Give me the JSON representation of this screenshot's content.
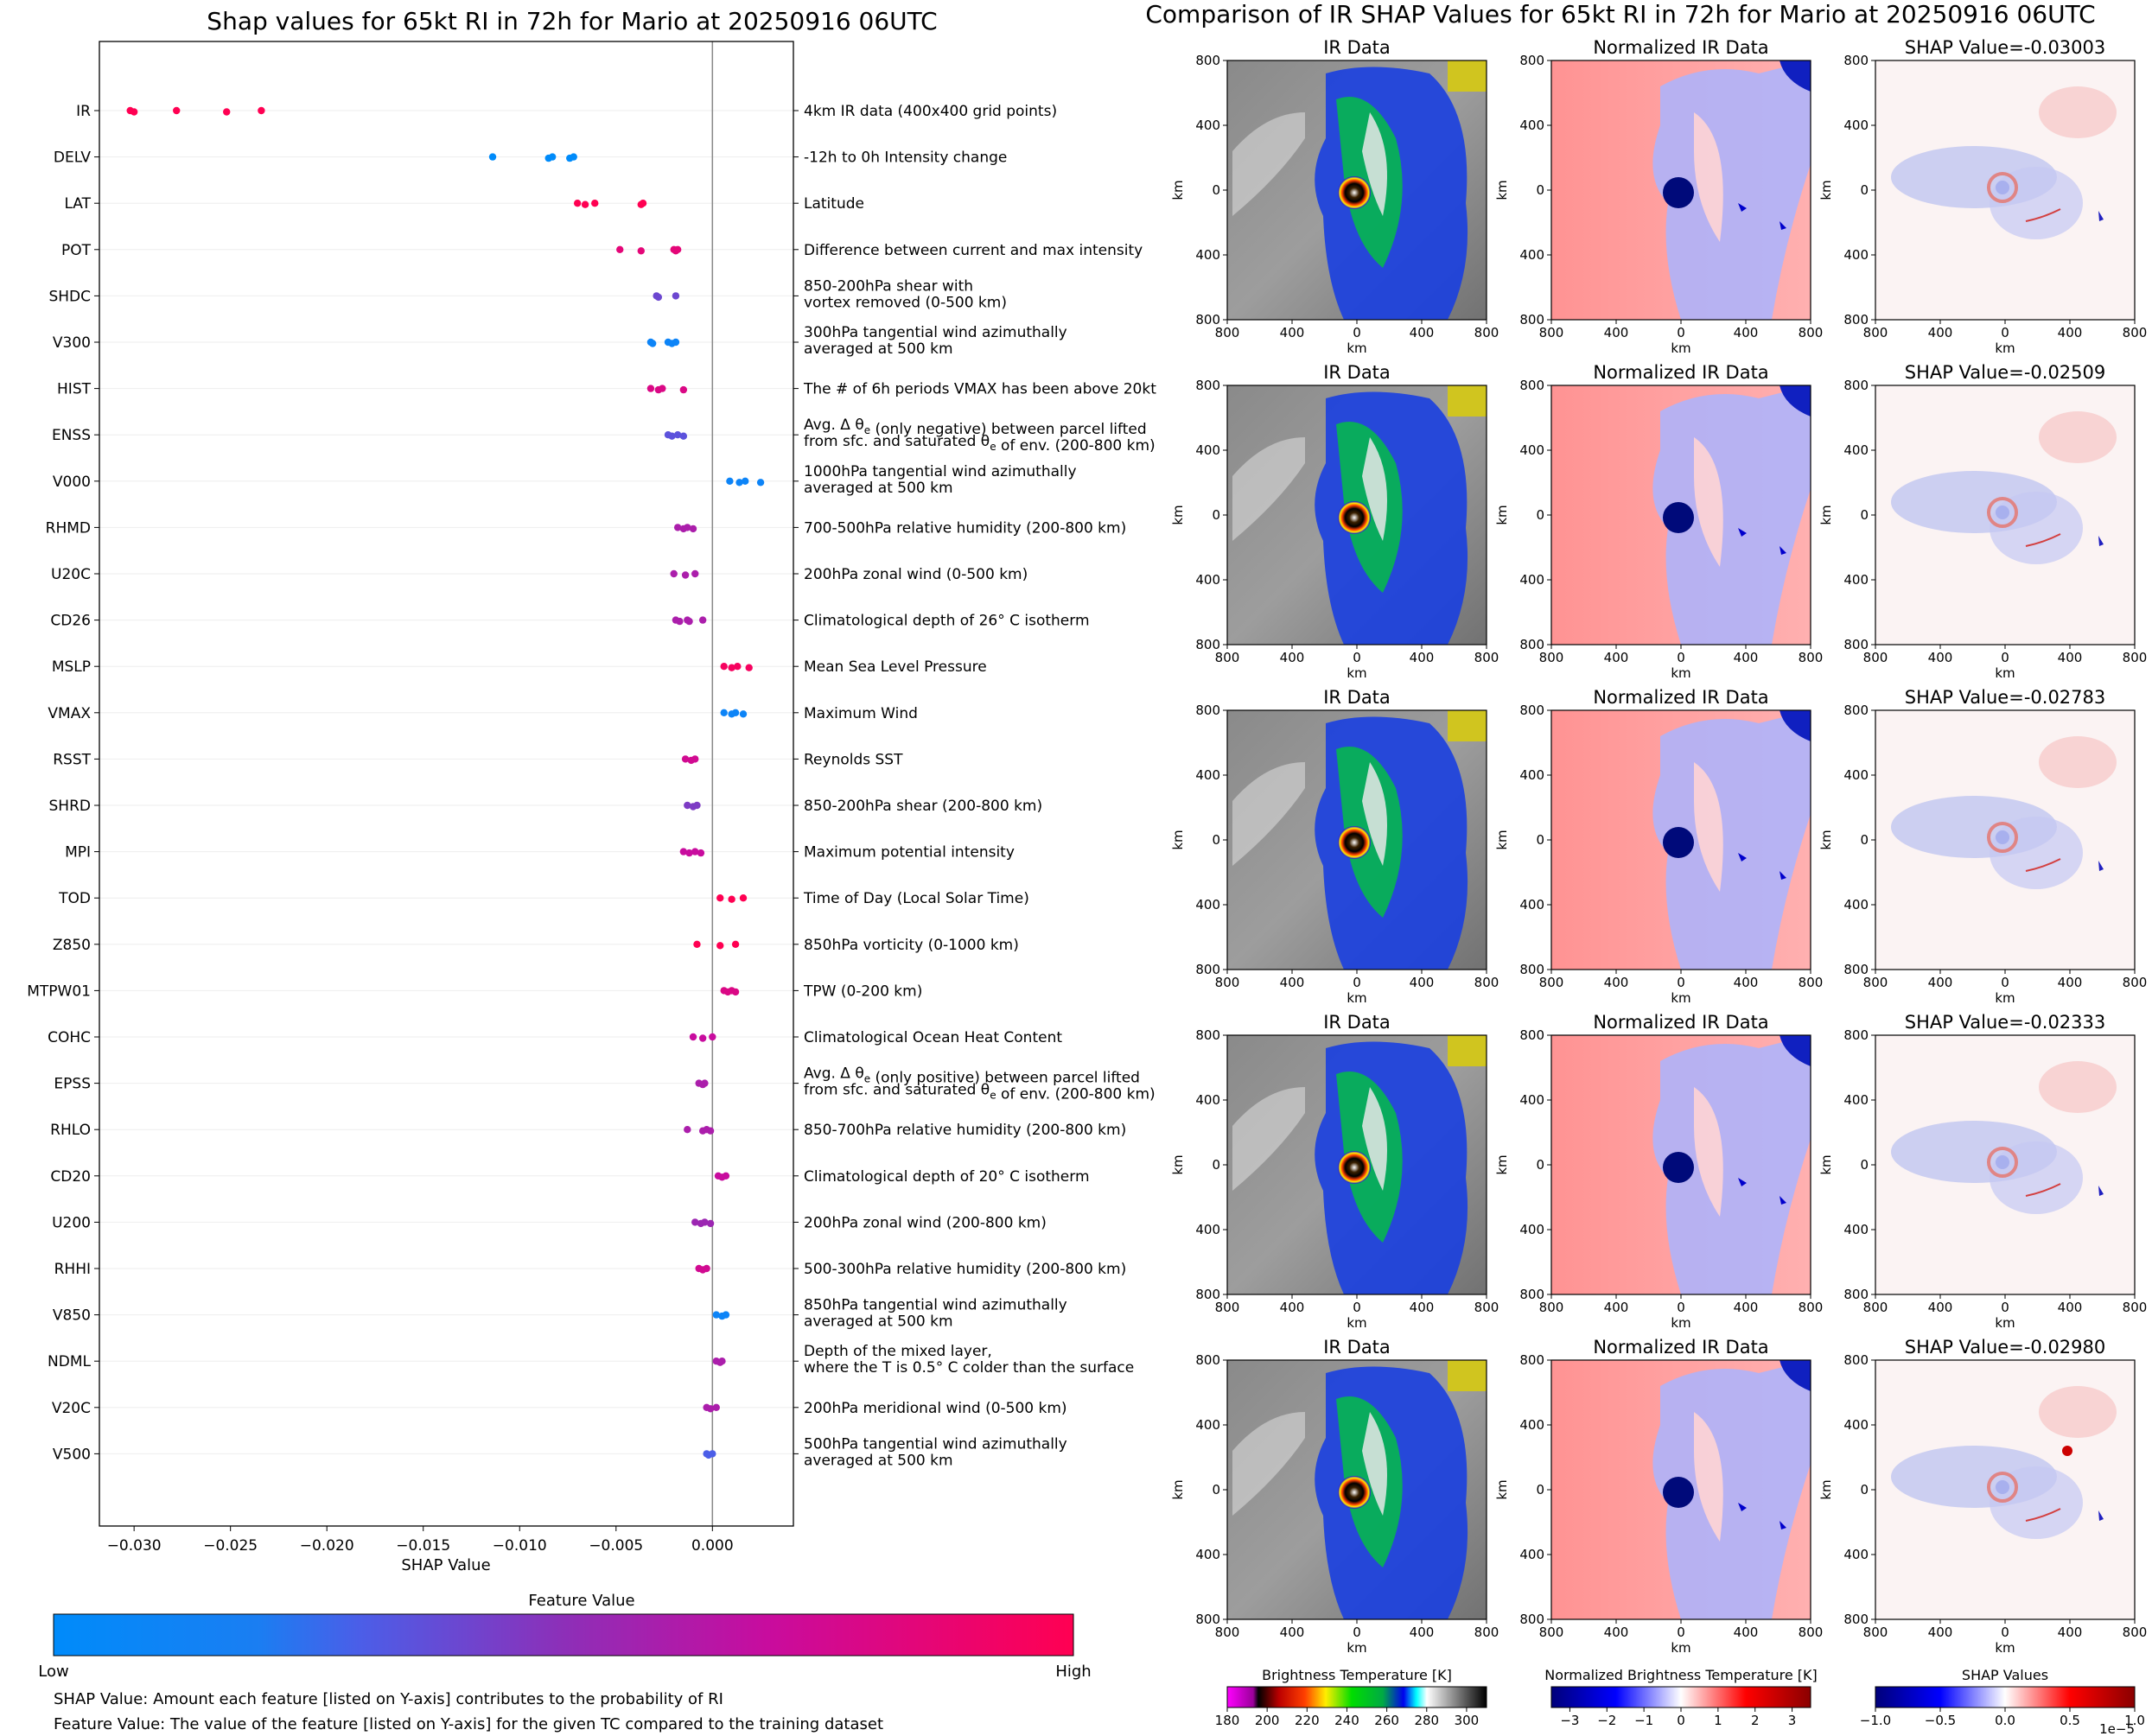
{
  "colors": {
    "low": "#0088ff",
    "mid": "#7b3fd0",
    "high": "#ff0052",
    "axis": "#000000",
    "zero_line": "#888888",
    "grid": "#eeeeee"
  },
  "chart_data": [
    {
      "type": "scatter",
      "title": "Shap values for 65kt RI in 72h for Mario at 20250916 06UTC",
      "xlabel": "SHAP Value",
      "ylabel": "",
      "xlim": [
        -0.0318,
        0.0042
      ],
      "xticks": [
        -0.03,
        -0.025,
        -0.02,
        -0.015,
        -0.01,
        -0.005,
        0.0
      ],
      "xtick_labels": [
        "−0.030",
        "−0.025",
        "−0.020",
        "−0.015",
        "−0.010",
        "−0.005",
        "0.000"
      ],
      "grid": "horizontal light",
      "colorbar": {
        "title": "Feature Value",
        "low_label": "Low",
        "high_label": "High"
      },
      "features": [
        {
          "name": "IR",
          "description": "4km IR data (400x400 grid points)",
          "values": [
            -0.0302,
            -0.03,
            -0.0278,
            -0.0252,
            -0.0234
          ],
          "color": 1.0
        },
        {
          "name": "DELV",
          "description": "-12h to 0h Intensity change",
          "values": [
            -0.0114,
            -0.0085,
            -0.0083,
            -0.0074,
            -0.0072
          ],
          "color": 0.0
        },
        {
          "name": "LAT",
          "description": "Latitude",
          "values": [
            -0.007,
            -0.0066,
            -0.0061,
            -0.0037,
            -0.0036
          ],
          "color": 1.0
        },
        {
          "name": "POT",
          "description": "Difference between current and max intensity",
          "values": [
            -0.0048,
            -0.0037,
            -0.002,
            -0.0019,
            -0.0018
          ],
          "color": 0.85
        },
        {
          "name": "SHDC",
          "description": "850-200hPa shear with\nvortex removed (0-500 km)",
          "values": [
            -0.0029,
            -0.0028,
            -0.0019
          ],
          "color": 0.4
        },
        {
          "name": "V300",
          "description": "300hPa tangential wind azimuthally\naveraged at 500 km",
          "values": [
            -0.0032,
            -0.0031,
            -0.0023,
            -0.0021,
            -0.0019
          ],
          "color": 0.05
        },
        {
          "name": "HIST",
          "description": "The # of 6h periods VMAX has been above 20kt",
          "values": [
            -0.0032,
            -0.0028,
            -0.0026,
            -0.0015
          ],
          "color": 0.8
        },
        {
          "name": "ENSS",
          "description": "Avg. Δ θe (only negative) between parcel lifted\nfrom sfc. and saturated θe of env. (200-800 km)",
          "values": [
            -0.0023,
            -0.0021,
            -0.0018,
            -0.0015
          ],
          "color": 0.35
        },
        {
          "name": "V000",
          "description": "1000hPa tangential wind azimuthally\naveraged at 500 km",
          "values": [
            0.0009,
            0.0014,
            0.0017,
            0.0025
          ],
          "color": 0.05
        },
        {
          "name": "RHMD",
          "description": "700-500hPa relative humidity (200-800 km)",
          "values": [
            -0.0018,
            -0.0015,
            -0.0013,
            -0.001
          ],
          "color": 0.6
        },
        {
          "name": "U20C",
          "description": "200hPa zonal wind (0-500 km)",
          "values": [
            -0.002,
            -0.0014,
            -0.0009
          ],
          "color": 0.6
        },
        {
          "name": "CD26",
          "description": "Climatological depth of 26° C isotherm",
          "values": [
            -0.0019,
            -0.0017,
            -0.0013,
            -0.0012,
            -0.0005
          ],
          "color": 0.6
        },
        {
          "name": "MSLP",
          "description": "Mean Sea Level Pressure",
          "values": [
            0.0006,
            0.001,
            0.0013,
            0.0019
          ],
          "color": 0.95
        },
        {
          "name": "VMAX",
          "description": "Maximum Wind",
          "values": [
            0.0006,
            0.001,
            0.0012,
            0.0016
          ],
          "color": 0.05
        },
        {
          "name": "RSST",
          "description": "Reynolds SST",
          "values": [
            -0.0014,
            -0.0011,
            -0.0009
          ],
          "color": 0.75
        },
        {
          "name": "SHRD",
          "description": "850-200hPa shear (200-800 km)",
          "values": [
            -0.0013,
            -0.001,
            -0.0008
          ],
          "color": 0.45
        },
        {
          "name": "MPI",
          "description": "Maximum potential intensity",
          "values": [
            -0.0015,
            -0.0012,
            -0.0009,
            -0.0006
          ],
          "color": 0.7
        },
        {
          "name": "TOD",
          "description": "Time of Day (Local Solar Time)",
          "values": [
            0.0004,
            0.001,
            0.0016
          ],
          "color": 1.0
        },
        {
          "name": "Z850",
          "description": "850hPa vorticity (0-1000 km)",
          "values": [
            -0.0008,
            0.0004,
            0.0012
          ],
          "color": 1.0
        },
        {
          "name": "MTPW01",
          "description": "TPW (0-200 km)",
          "values": [
            0.0006,
            0.0008,
            0.001,
            0.0012
          ],
          "color": 0.8
        },
        {
          "name": "COHC",
          "description": "Climatological Ocean Heat Content",
          "values": [
            -0.001,
            -0.0005,
            0.0
          ],
          "color": 0.7
        },
        {
          "name": "EPSS",
          "description": "Avg. Δ θe (only positive) between parcel lifted\nfrom sfc. and saturated θe of env. (200-800 km)",
          "values": [
            -0.0007,
            -0.0005,
            -0.0004
          ],
          "color": 0.6
        },
        {
          "name": "RHLO",
          "description": "850-700hPa relative humidity (200-800 km)",
          "values": [
            -0.0013,
            -0.0005,
            -0.0003,
            -0.0001
          ],
          "color": 0.6
        },
        {
          "name": "CD20",
          "description": "Climatological depth of 20° C isotherm",
          "values": [
            0.0003,
            0.0005,
            0.0007
          ],
          "color": 0.7
        },
        {
          "name": "U200",
          "description": "200hPa zonal wind (200-800 km)",
          "values": [
            -0.0009,
            -0.0006,
            -0.0004,
            -0.0001
          ],
          "color": 0.55
        },
        {
          "name": "RHHI",
          "description": "500-300hPa relative humidity (200-800 km)",
          "values": [
            -0.0007,
            -0.0005,
            -0.0003
          ],
          "color": 0.75
        },
        {
          "name": "V850",
          "description": "850hPa tangential wind azimuthally\naveraged at 500 km",
          "values": [
            0.0002,
            0.0005,
            0.0007
          ],
          "color": 0.05
        },
        {
          "name": "NDML",
          "description": "Depth of the mixed layer,\nwhere the T is 0.5° C colder than the surface",
          "values": [
            0.0002,
            0.0004,
            0.0005
          ],
          "color": 0.6
        },
        {
          "name": "V20C",
          "description": "200hPa meridional wind (0-500 km)",
          "values": [
            -0.0003,
            -0.0001,
            0.0002
          ],
          "color": 0.6
        },
        {
          "name": "V500",
          "description": "500hPa tangential wind azimuthally\naveraged at 500 km",
          "values": [
            -0.0003,
            -0.0002,
            0.0
          ],
          "color": 0.3
        }
      ]
    },
    {
      "type": "heatmap",
      "title": "Comparison of IR SHAP Values for 65kt RI in 72h for Mario at 20250916 06UTC",
      "xlabel": "km",
      "ylabel": "km",
      "xticks": [
        "800",
        "400",
        "0",
        "400",
        "800"
      ],
      "yticks": [
        "800",
        "400",
        "0",
        "400",
        "800"
      ],
      "column_titles": [
        "IR Data",
        "Normalized IR Data"
      ],
      "shap_titles": [
        "SHAP Value=-0.03003",
        "SHAP Value=-0.02509",
        "SHAP Value=-0.02783",
        "SHAP Value=-0.02333",
        "SHAP Value=-0.02980"
      ],
      "colorbars": [
        {
          "title": "Brightness Temperature [K]",
          "ticks": [
            "180",
            "200",
            "220",
            "240",
            "260",
            "280",
            "300"
          ],
          "range": [
            180,
            310
          ]
        },
        {
          "title": "Normalized Brightness Temperature [K]",
          "ticks": [
            "−3",
            "−2",
            "−1",
            "0",
            "1",
            "2",
            "3"
          ],
          "range": [
            -3.5,
            3.5
          ]
        },
        {
          "title": "SHAP Values",
          "ticks": [
            "−1.0",
            "−0.5",
            "0.0",
            "0.5",
            "1.0"
          ],
          "range": [
            -1.0,
            1.0
          ],
          "multiplier": "1e−5"
        }
      ]
    }
  ],
  "footnotes": [
    "SHAP Value: Amount each feature [listed on Y-axis] contributes to the probability of RI",
    "Feature Value: The value of the feature [listed on Y-axis] for the given TC compared to the training dataset"
  ]
}
